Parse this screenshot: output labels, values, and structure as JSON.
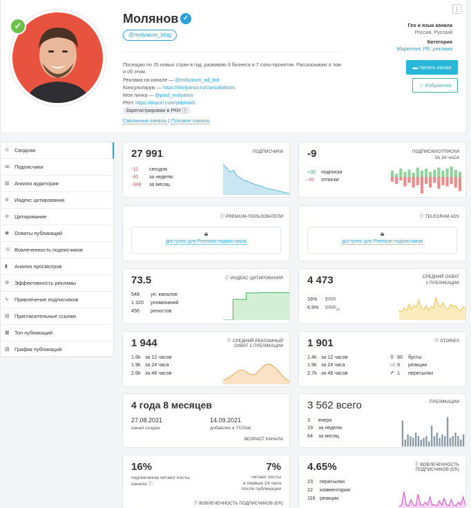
{
  "profile": {
    "name": "Молянов",
    "username": "@molyanov_blog",
    "desc_lines": [
      "Посещаю по 15 новых стран в год, развиваю 3 бизнеса и 7 соло-проектов. Рассказываю о том",
      "и об этом."
    ],
    "ads_label": "Реклама на канале — ",
    "ads_link": "@molyanov_ad_bot",
    "consult_label": "Консультирую — ",
    "consult_link": "https://molyanov.ru/consultations",
    "personal_label": "Моя личка — ",
    "personal_link": "@paul_molyanov",
    "rkn_label": "РКН: ",
    "rkn_link": "https://tinyurl.com/yklphokh",
    "rkn_badge": "Зарегистрирован в РКН",
    "linked_channels": "Связанные каналы",
    "similar_channels": "Похожие каналы",
    "separator": "|",
    "geo_title": "Гео и язык канала",
    "geo_value": "Россия, Русский",
    "category_title": "Категория",
    "category_value": "Маркетинг, PR, реклама",
    "read_button": "Читать канал",
    "fav_button": "Избранное",
    "menu_dots": "⋮"
  },
  "sidebar": [
    {
      "label": "Сводная",
      "icon": "⊙"
    },
    {
      "label": "Подписчики",
      "icon": "ꝏ"
    },
    {
      "label": "Анализ аудитории",
      "icon": "▥"
    },
    {
      "label": "Индекс цитирования",
      "icon": "⊚"
    },
    {
      "label": "Цитирование",
      "icon": "⊘"
    },
    {
      "label": "Охваты публикаций",
      "icon": "◉"
    },
    {
      "label": "Вовлеченность подписчиков",
      "icon": "☏"
    },
    {
      "label": "Анализ просмотров",
      "icon": "▮"
    },
    {
      "label": "Эффективность рекламы",
      "icon": "⚙"
    },
    {
      "label": "Привлечение подписчиков",
      "icon": "∿"
    },
    {
      "label": "Пригласительные ссылки",
      "icon": "▤"
    },
    {
      "label": "Топ публикаций",
      "icon": "▦"
    },
    {
      "label": "График публикаций",
      "icon": "▧"
    }
  ],
  "subs": {
    "value": "27 991",
    "label": "подписчики",
    "today_v": "-11",
    "today_l": "сегодня",
    "week_v": "-40",
    "week_l": "за неделю",
    "month_v": "-348",
    "month_l": "за месяц"
  },
  "subsunsub": {
    "value": "-9",
    "label": "подписки/отписки",
    "label2": "за 24 часа",
    "subs_v": "+32",
    "subs_l": "подписки",
    "unsubs_v": "-41",
    "unsubs_l": "отписки"
  },
  "premium": {
    "label": "Premium-пользователи",
    "text": "доступно для Premium-подписчиков"
  },
  "tgads": {
    "label": "Telegram Ads",
    "text": "доступно для Premium-подписчиков"
  },
  "citation": {
    "value": "73.5",
    "label": "индекс цитирования",
    "r1_v": "548",
    "r1_l": "уп. каналов",
    "r2_v": "1 320",
    "r2_l": "упоминаний",
    "r3_v": "456",
    "r3_l": "репостов"
  },
  "reach": {
    "value": "4 473",
    "label": "средний охват",
    "label2": "1 публикации",
    "err_v": "16%",
    "err_l": "ERR",
    "err24_v": "6.9%",
    "err24_l": "ERR",
    "err24_sub": "24"
  },
  "adreach": {
    "value": "1 944",
    "label": "средний рекламный",
    "label2": "охват 1 публикации",
    "r1_v": "1.6k",
    "r1_l": "за 12 часов",
    "r2_v": "1.9k",
    "r2_l": "за 24 часа",
    "r3_v": "2.6k",
    "r3_l": "за 48 часов"
  },
  "stories": {
    "value": "1 901",
    "label": "stories",
    "r1_v": "1.4k",
    "r1_l": "за 12 часов",
    "r2_v": "1.9k",
    "r2_l": "за 24 часа",
    "r3_v": "2.7k",
    "r3_l": "за 48 часов",
    "b1_v": "60",
    "b1_l": "бусты",
    "b2_v": "9",
    "b2_l": "реакции",
    "b3_v": "1",
    "b3_l": "пересылки"
  },
  "age": {
    "value": "4 года 8 месяцев",
    "created_v": "27.08.2021",
    "created_l": "канал создан",
    "added_v": "14.09.2021",
    "added_l": "добавлен в TGStat",
    "label": "возраст канала"
  },
  "posts": {
    "value": "3 562 всего",
    "label": "публикации",
    "r1_v": "3",
    "r1_l": "вчера",
    "r2_v": "19",
    "r2_l": "за неделю",
    "r3_v": "64",
    "r3_l": "за месяц"
  },
  "engage": {
    "v1": "16%",
    "l1": "подписчиков читают посты канала",
    "v2": "7%",
    "l2a": "читают посты",
    "l2b": "в первые 24 часа",
    "l2c": "после публикации",
    "label": "вовлеченность подписчиков (ER)"
  },
  "er": {
    "value": "4.65%",
    "label": "вовлеченность",
    "label2": "подписчиков (ER)",
    "r1_v": "23",
    "r1_l": "пересылки",
    "r2_v": "22",
    "r2_l": "комментарии",
    "r3_v": "116",
    "r3_l": "реакции"
  },
  "chart_data": [
    {
      "type": "area",
      "series": [
        {
          "values": [
            28340,
            28300,
            28250,
            28270,
            28200,
            28180,
            28150,
            28140,
            28120,
            28100,
            28090,
            28080,
            28060,
            28050,
            28040,
            28030,
            28020,
            28010,
            28000,
            27991
          ]
        }
      ]
    },
    {
      "type": "bar",
      "series": [
        {
          "name": "подписки",
          "values": [
            6,
            3,
            8,
            5,
            7,
            4,
            9,
            6,
            8,
            5,
            7,
            9,
            6,
            8,
            10,
            7,
            5
          ]
        },
        {
          "name": "отписки",
          "values": [
            -4,
            -6,
            -3,
            -8,
            -5,
            -9,
            -7,
            -14,
            -6,
            -9,
            -5,
            -10,
            -7,
            -8,
            -6,
            -9,
            -12
          ]
        }
      ]
    },
    {
      "type": "line",
      "series": [
        {
          "values": [
            0,
            0,
            0,
            0.65,
            0.65,
            0.65,
            0.65,
            0.85,
            0.85,
            0.85,
            0.85,
            0.86,
            0.86,
            0.86,
            0.86,
            0.86,
            0.86,
            0.86,
            0.86,
            0.86
          ]
        }
      ]
    },
    {
      "type": "area",
      "series": [
        {
          "values": [
            0.3,
            0.25,
            0.4,
            0.3,
            0.55,
            0.35,
            0.5,
            0.45,
            0.7,
            0.4,
            0.35,
            0.5,
            0.3,
            0.45,
            0.4,
            0.8,
            0.5,
            0.45,
            0.6,
            0.4,
            0.35,
            0.55,
            0.45,
            0.5,
            0.35,
            0.3,
            0.45,
            0.4
          ]
        }
      ]
    },
    {
      "type": "area",
      "series": [
        {
          "values": [
            0.1,
            0.15,
            0.25,
            0.35,
            0.45,
            0.5,
            0.45,
            0.35,
            0.3,
            0.35,
            0.5,
            0.65,
            0.72,
            0.7,
            0.6,
            0.45,
            0.3,
            0.15,
            0.08
          ]
        }
      ]
    },
    {
      "type": "bar",
      "series": [
        {
          "values": [
            0.75,
            0.2,
            0.35,
            0.3,
            0.25,
            0.4,
            0.3,
            0.2,
            0.25,
            0.3,
            0.15,
            0.6,
            0.3,
            0.4,
            0.25,
            0.35,
            0.3,
            0.85,
            0.25,
            0.3,
            0.4,
            0.3,
            0.2,
            0.35
          ]
        }
      ]
    },
    {
      "type": "line",
      "series": [
        {
          "values": [
            0.05,
            0.08,
            0.6,
            0.1,
            0.05,
            0.3,
            0.08,
            0.06,
            0.5,
            0.1,
            0.07,
            0.2,
            0.09,
            0.4,
            0.08,
            0.1,
            0.05,
            0.25,
            0.08,
            0.35,
            0.1,
            0.06,
            0.3,
            0.08,
            0.05,
            0.2,
            0.1,
            0.4,
            0.08
          ]
        }
      ]
    }
  ]
}
